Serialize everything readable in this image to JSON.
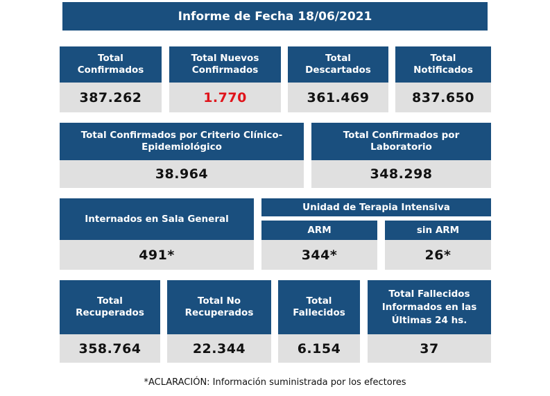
{
  "title": "Informe de Fecha 18/06/2021",
  "row1": [
    {
      "label": "Total\nConfirmados",
      "value": "387.262"
    },
    {
      "label": "Total Nuevos\nConfirmados",
      "value": "1.770"
    },
    {
      "label": "Total\nDescartados",
      "value": "361.469"
    },
    {
      "label": "Total\nNotificados",
      "value": "837.650"
    }
  ],
  "row2": [
    {
      "label": "Total Confirmados por Criterio Clínico-\nEpidemiológico",
      "value": "38.964"
    },
    {
      "label": "Total Confirmados por\nLaboratorio",
      "value": "348.298"
    }
  ],
  "row3": {
    "internados": {
      "label": "Internados en Sala General",
      "value": "491*"
    },
    "uti_title": "Unidad de Terapia Intensiva",
    "arm": {
      "label": "ARM",
      "value": "344*"
    },
    "sin_arm": {
      "label": "sin ARM",
      "value": "26*"
    }
  },
  "row4": [
    {
      "label": "Total\nRecuperados",
      "value": "358.764"
    },
    {
      "label": "Total No\nRecuperados",
      "value": "22.344"
    },
    {
      "label": "Total\nFallecidos",
      "value": "6.154"
    },
    {
      "label": "Total Fallecidos\nInformados en las\nÚltimas 24 hs.",
      "value": "37"
    }
  ],
  "footnote": "*ACLARACIÓN: Información suministrada por los efectores",
  "colors": {
    "header": "#1a4f7e",
    "value_bg": "#e0e0e0",
    "highlight": "#e0141b"
  }
}
